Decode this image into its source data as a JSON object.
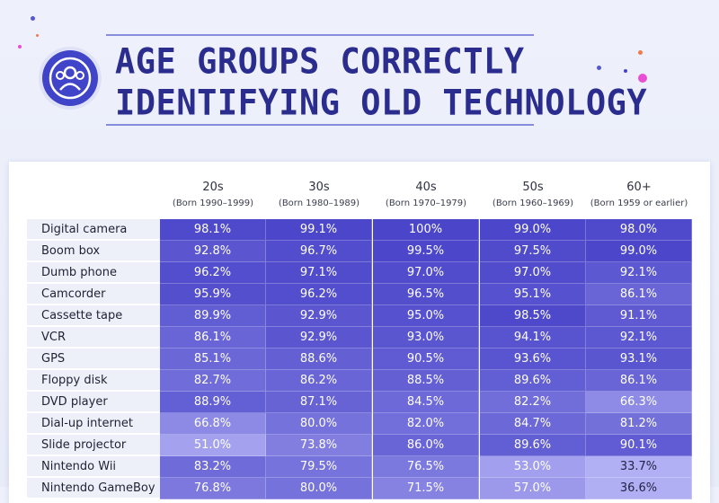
{
  "title_lines": [
    "AGE GROUPS CORRECTLY",
    "IDENTIFYING OLD TECHNOLOGY"
  ],
  "colors": {
    "title": "#2b2d8e",
    "badge": "#3f44c8",
    "cell_high": "#4a45c9",
    "cell_low": "#b3b1f5",
    "dot_pink": "#e84fd3",
    "dot_orange": "#f07a4a",
    "dot_blue": "#5557d1"
  },
  "icons": [
    "people-group-icon"
  ],
  "chart_data": {
    "type": "heatmap",
    "title": "Age Groups Correctly Identifying Old Technology",
    "unit": "%",
    "columns": [
      {
        "label": "20s",
        "sub": "(Born 1990–1999)"
      },
      {
        "label": "30s",
        "sub": "(Born 1980–1989)"
      },
      {
        "label": "40s",
        "sub": "(Born 1970–1979)"
      },
      {
        "label": "50s",
        "sub": "(Born 1960–1969)"
      },
      {
        "label": "60+",
        "sub": "(Born 1959 or earlier)"
      }
    ],
    "rows": [
      {
        "label": "Digital camera",
        "values": [
          "98.1%",
          "99.1%",
          "100%",
          "99.0%",
          "98.0%"
        ]
      },
      {
        "label": "Boom box",
        "values": [
          "92.8%",
          "96.7%",
          "99.5%",
          "97.5%",
          "99.0%"
        ]
      },
      {
        "label": "Dumb phone",
        "values": [
          "96.2%",
          "97.1%",
          "97.0%",
          "97.0%",
          "92.1%"
        ]
      },
      {
        "label": "Camcorder",
        "values": [
          "95.9%",
          "96.2%",
          "96.5%",
          "95.1%",
          "86.1%"
        ]
      },
      {
        "label": "Cassette tape",
        "values": [
          "89.9%",
          "92.9%",
          "95.0%",
          "98.5%",
          "91.1%"
        ]
      },
      {
        "label": "VCR",
        "values": [
          "86.1%",
          "92.9%",
          "93.0%",
          "94.1%",
          "92.1%"
        ]
      },
      {
        "label": "GPS",
        "values": [
          "85.1%",
          "88.6%",
          "90.5%",
          "93.6%",
          "93.1%"
        ]
      },
      {
        "label": "Floppy disk",
        "values": [
          "82.7%",
          "86.2%",
          "88.5%",
          "89.6%",
          "86.1%"
        ]
      },
      {
        "label": "DVD player",
        "values": [
          "88.9%",
          "87.1%",
          "84.5%",
          "82.2%",
          "66.3%"
        ]
      },
      {
        "label": "Dial-up internet",
        "values": [
          "66.8%",
          "80.0%",
          "82.0%",
          "84.7%",
          "81.2%"
        ]
      },
      {
        "label": "Slide projector",
        "values": [
          "51.0%",
          "73.8%",
          "86.0%",
          "89.6%",
          "90.1%"
        ]
      },
      {
        "label": "Nintendo Wii",
        "values": [
          "83.2%",
          "79.5%",
          "76.5%",
          "53.0%",
          "33.7%"
        ]
      },
      {
        "label": "Nintendo GameBoy",
        "values": [
          "76.8%",
          "80.0%",
          "71.5%",
          "57.0%",
          "36.6%"
        ]
      }
    ]
  }
}
